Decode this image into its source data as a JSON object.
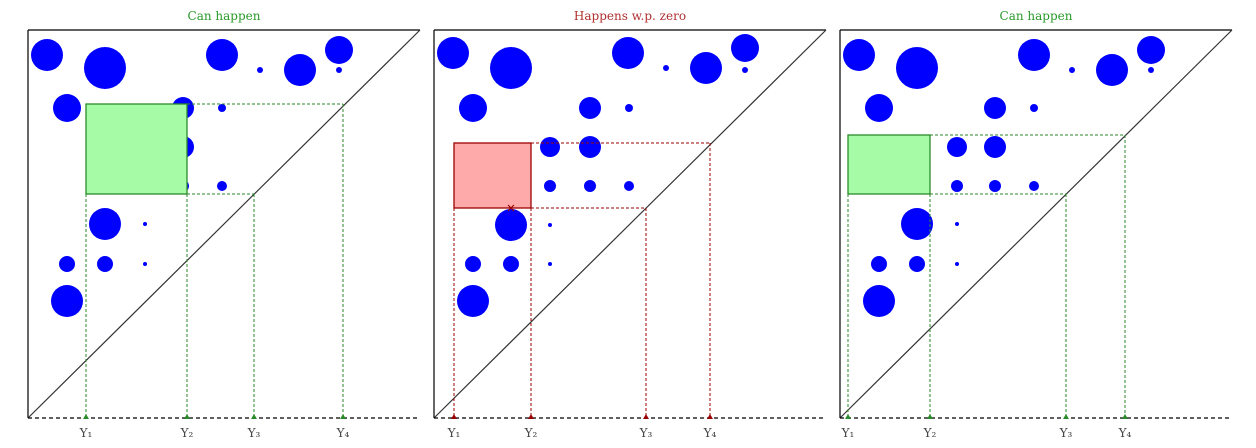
{
  "panels": [
    {
      "title": "Can happen",
      "labels": [
        "Y₁",
        "Y₂",
        "Y₃",
        "Y₄"
      ]
    },
    {
      "title": "Happens w.p. zero",
      "labels": [
        "Y₁",
        "Y₂",
        "Y₃",
        "Y₄"
      ]
    },
    {
      "title": "Can happen",
      "labels": [
        "Y₁",
        "Y₂",
        "Y₃",
        "Y₄"
      ]
    }
  ]
}
